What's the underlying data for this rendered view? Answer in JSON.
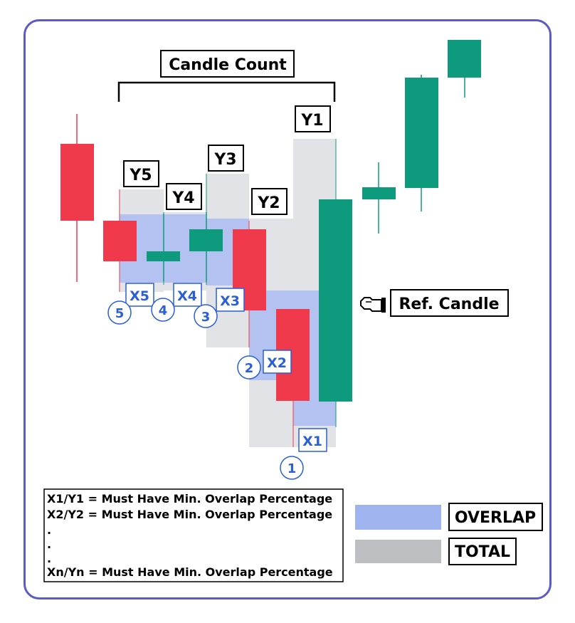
{
  "title": "Candle Count",
  "y_labels": [
    "Y1",
    "Y2",
    "Y3",
    "Y4",
    "Y5"
  ],
  "x_labels": [
    "X1",
    "X2",
    "X3",
    "X4",
    "X5"
  ],
  "numbers": [
    "1",
    "2",
    "3",
    "4",
    "5"
  ],
  "ref_candle": "Ref. Candle",
  "legend": {
    "overlap": "OVERLAP",
    "total": "TOTAL"
  },
  "notes": [
    "X1/Y1 = Must Have Min. Overlap Percentage",
    "X2/Y2 = Must Have Min. Overlap Percentage",
    ".",
    ".",
    ".",
    "Xn/Yn = Must Have Min. Overlap Percentage"
  ],
  "colors": {
    "bull": "#0e9a7c",
    "bear": "#f0394a",
    "overlap": "#9fb3ef",
    "total": "#e2e3e6",
    "frame": "#5b5bc4",
    "label_blue": "#2a5fd6",
    "legend_total": "#bdbec2"
  },
  "icons": {
    "ref_pointer": "pointing-hand-icon"
  }
}
